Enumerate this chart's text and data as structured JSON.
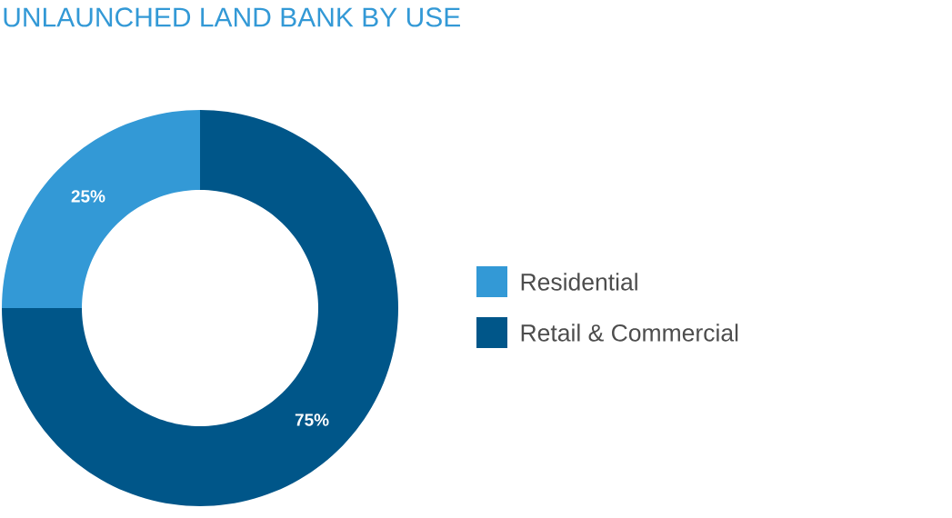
{
  "chart_data": {
    "type": "donut",
    "title": "UNLAUNCHED LAND BANK BY USE",
    "categories": [
      "Residential",
      "Retail & Commercial"
    ],
    "values": [
      25,
      75
    ],
    "colors": [
      "#3399d6",
      "#005689"
    ],
    "value_labels": [
      "25%",
      "75%"
    ],
    "legend": "right"
  }
}
